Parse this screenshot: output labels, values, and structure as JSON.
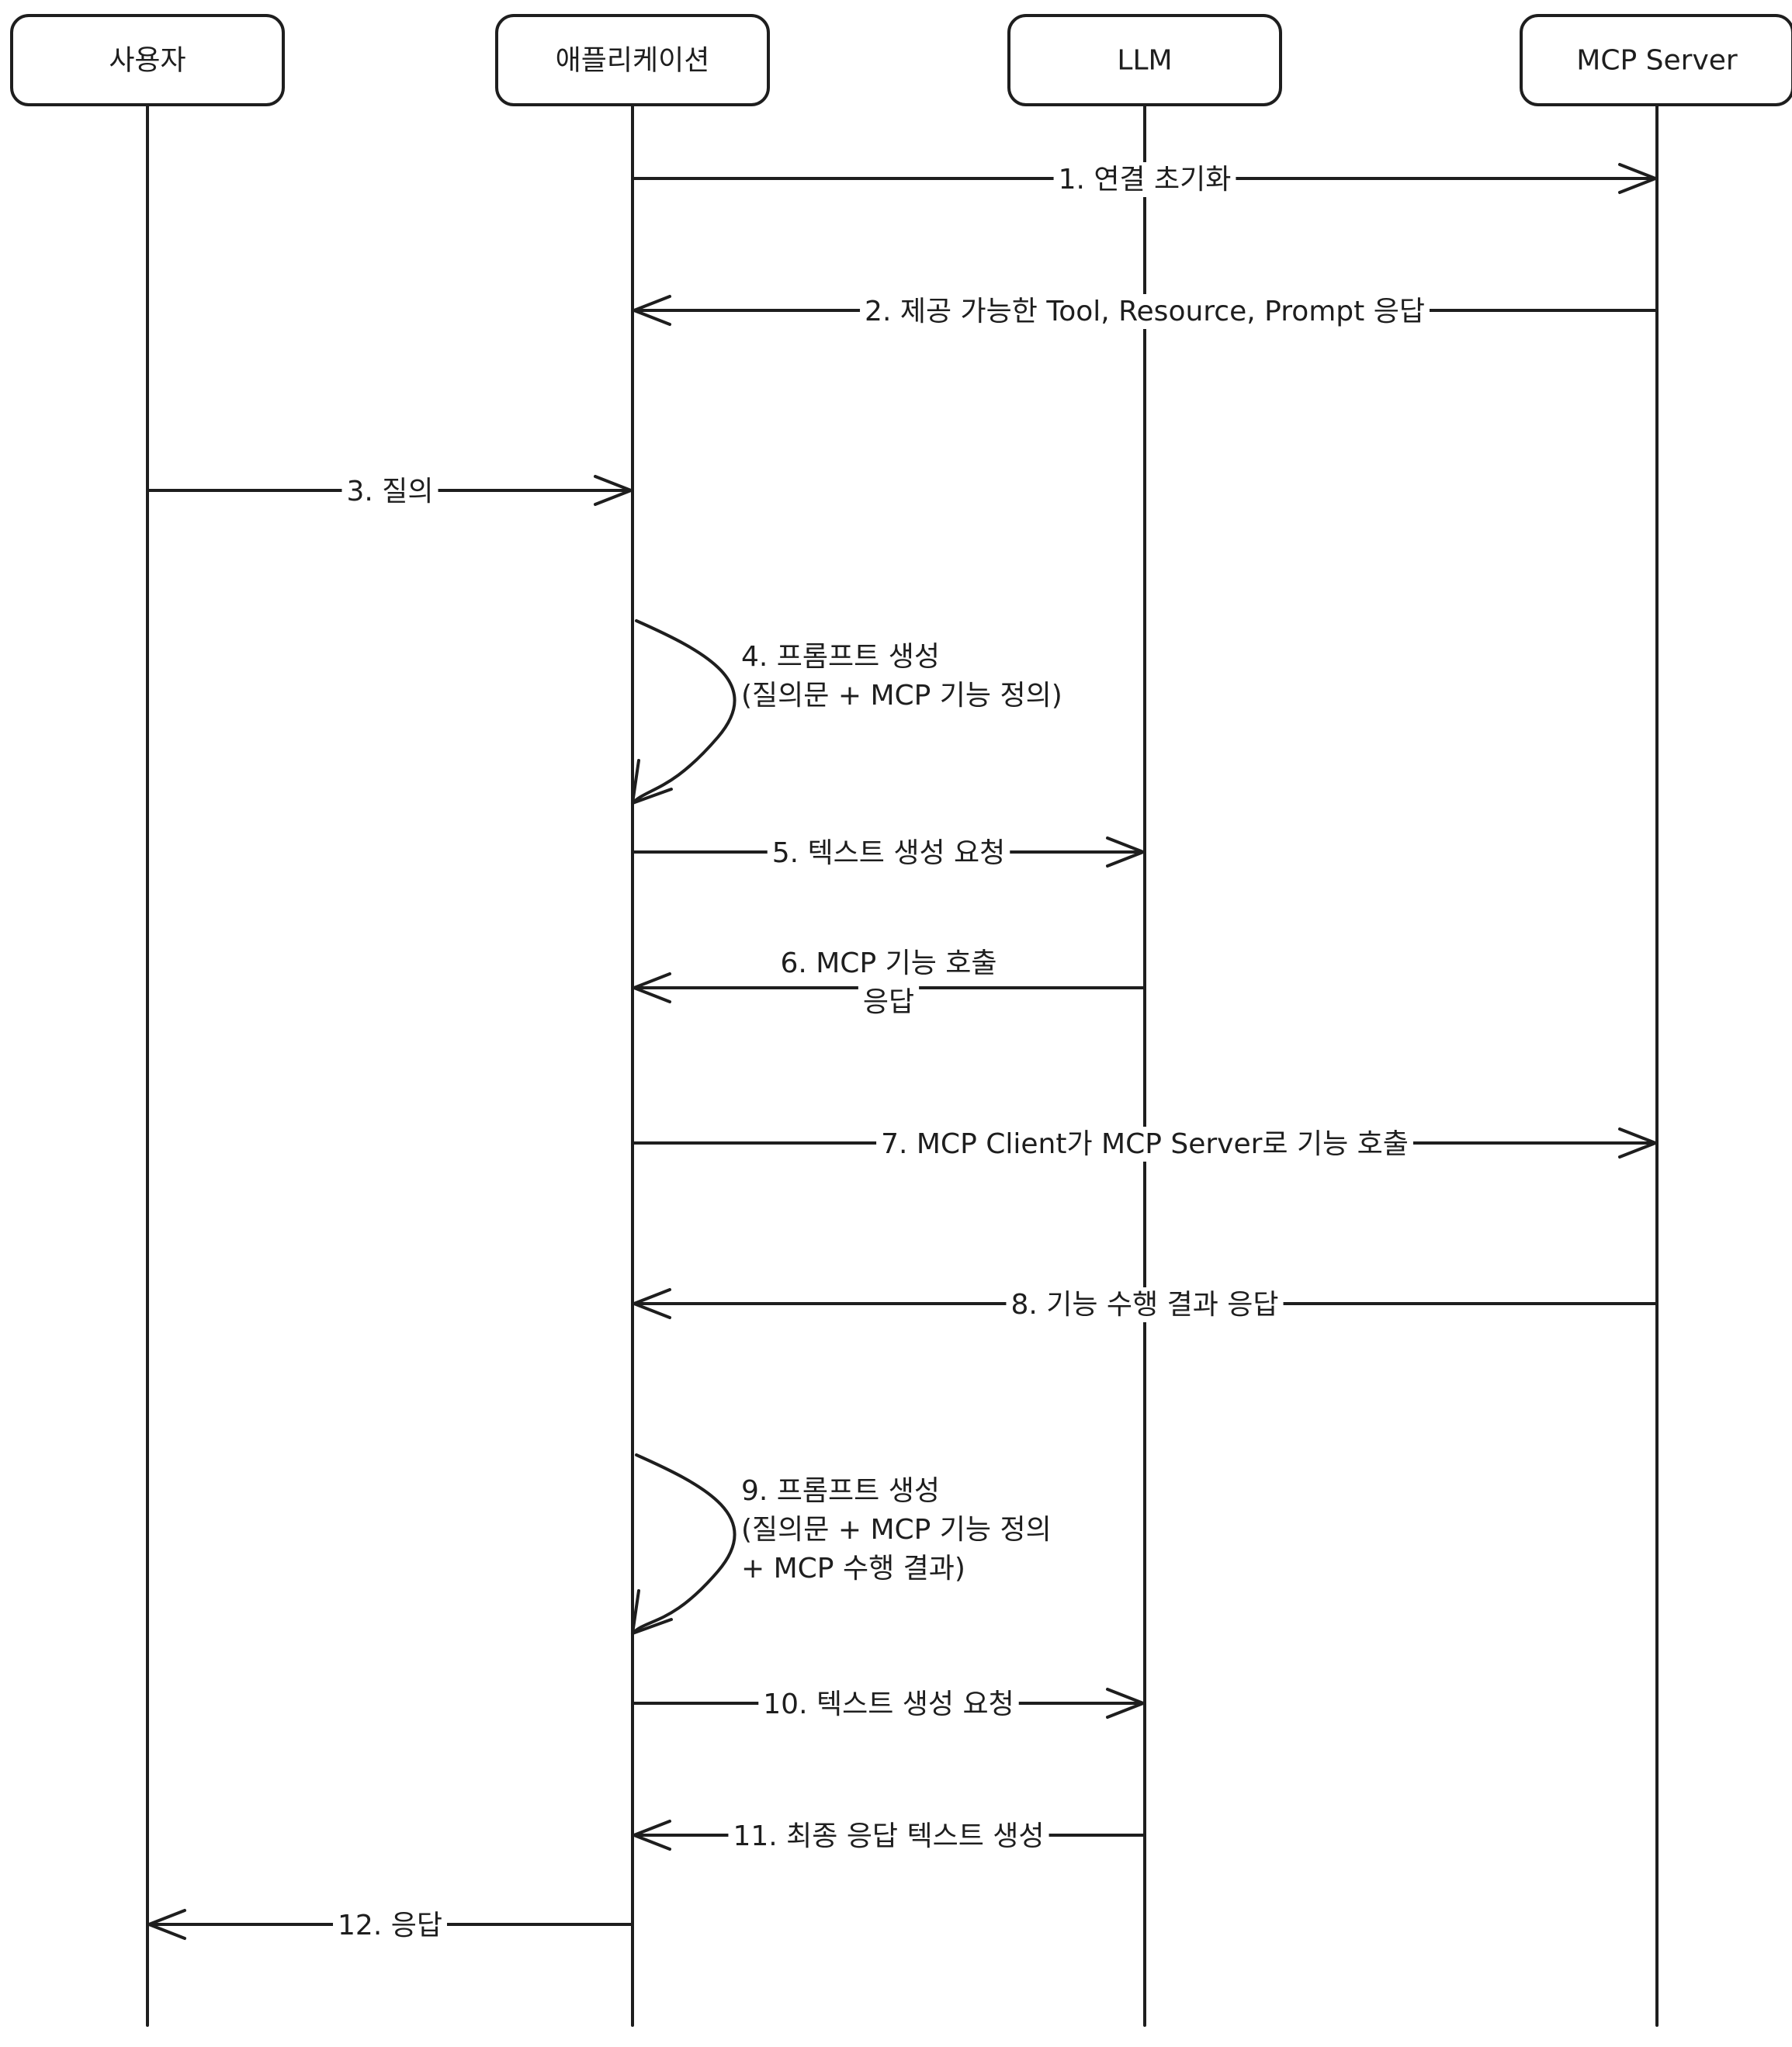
{
  "actors": [
    {
      "id": "user",
      "label": "사용자"
    },
    {
      "id": "app",
      "label": "애플리케이션"
    },
    {
      "id": "llm",
      "label": "LLM"
    },
    {
      "id": "mcp",
      "label": "MCP Server"
    }
  ],
  "messages": [
    {
      "num": 1,
      "from": "app",
      "to": "mcp",
      "lines": [
        "1. 연결 초기화"
      ]
    },
    {
      "num": 2,
      "from": "mcp",
      "to": "app",
      "lines": [
        "2. 제공 가능한 Tool, Resource, Prompt 응답"
      ]
    },
    {
      "num": 3,
      "from": "user",
      "to": "app",
      "lines": [
        "3. 질의"
      ]
    },
    {
      "num": 4,
      "from": "app",
      "to": "app",
      "self": true,
      "lines": [
        "4. 프롬프트 생성",
        "(질의문 + MCP 기능 정의)"
      ]
    },
    {
      "num": 5,
      "from": "app",
      "to": "llm",
      "lines": [
        "5. 텍스트 생성 요청"
      ]
    },
    {
      "num": 6,
      "from": "llm",
      "to": "app",
      "lines": [
        "6. MCP 기능 호출",
        "응답"
      ]
    },
    {
      "num": 7,
      "from": "app",
      "to": "mcp",
      "lines": [
        "7. MCP Client가 MCP Server로 기능 호출"
      ]
    },
    {
      "num": 8,
      "from": "mcp",
      "to": "app",
      "lines": [
        "8. 기능 수행 결과 응답"
      ]
    },
    {
      "num": 9,
      "from": "app",
      "to": "app",
      "self": true,
      "lines": [
        "9. 프롬프트 생성",
        "(질의문 + MCP 기능 정의",
        "+ MCP 수행 결과)"
      ]
    },
    {
      "num": 10,
      "from": "app",
      "to": "llm",
      "lines": [
        "10. 텍스트 생성 요청"
      ]
    },
    {
      "num": 11,
      "from": "llm",
      "to": "app",
      "lines": [
        "11. 최종 응답 텍스트 생성"
      ]
    },
    {
      "num": 12,
      "from": "app",
      "to": "user",
      "lines": [
        "12. 응답"
      ]
    }
  ]
}
